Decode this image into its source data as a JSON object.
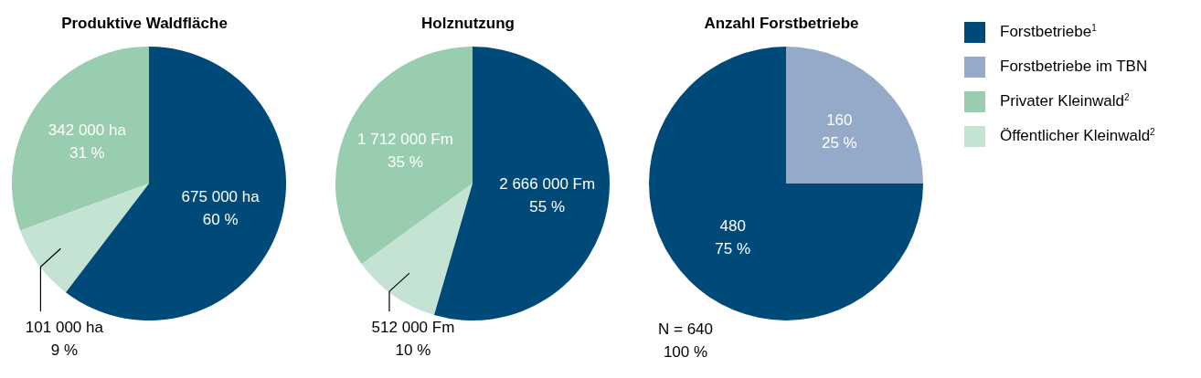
{
  "chart_data": [
    {
      "type": "pie",
      "title": "Produktive Waldfläche",
      "categories": [
        null,
        null,
        null
      ],
      "values": [
        342000,
        101000,
        675000
      ],
      "colors": [
        "#98cdb0",
        "#c5e3d3",
        "#004a7a"
      ],
      "value_labels": [
        "342 000 ha\n31 %",
        "101 000 ha\n9 %",
        "675 000 ha\n60 %"
      ],
      "legend": false
    },
    {
      "type": "pie",
      "title": "Holznutzung",
      "categories": [
        null,
        null,
        null
      ],
      "values": [
        1712000,
        512000,
        2666000
      ],
      "colors": [
        "#98cdb0",
        "#c5e3d3",
        "#004a7a"
      ],
      "value_labels": [
        "1 712 000 Fm\n35 %",
        "512 000 Fm\n10 %",
        "2 666 000 Fm\n55 %"
      ],
      "legend": false
    },
    {
      "type": "pie",
      "title": "Anzahl Forstbetriebe",
      "categories": [
        "Forstbetriebe$^{1}$",
        "Forstbetriebe im TBN",
        "Privater Kleinwald$^{2}$",
        "Öffentlicher Kleinwald$^{2}$"
      ],
      "values": [
        480,
        160,
        null,
        null
      ],
      "colors": [
        "#004a7a",
        "#95aac8",
        "#98cdb0",
        "#c5e3d3"
      ],
      "value_labels": [
        "480\n75 %",
        "160\n25 %",
        null,
        null
      ],
      "legend": "right",
      "annotations": [
        "N = 640\n100 %"
      ]
    }
  ]
}
